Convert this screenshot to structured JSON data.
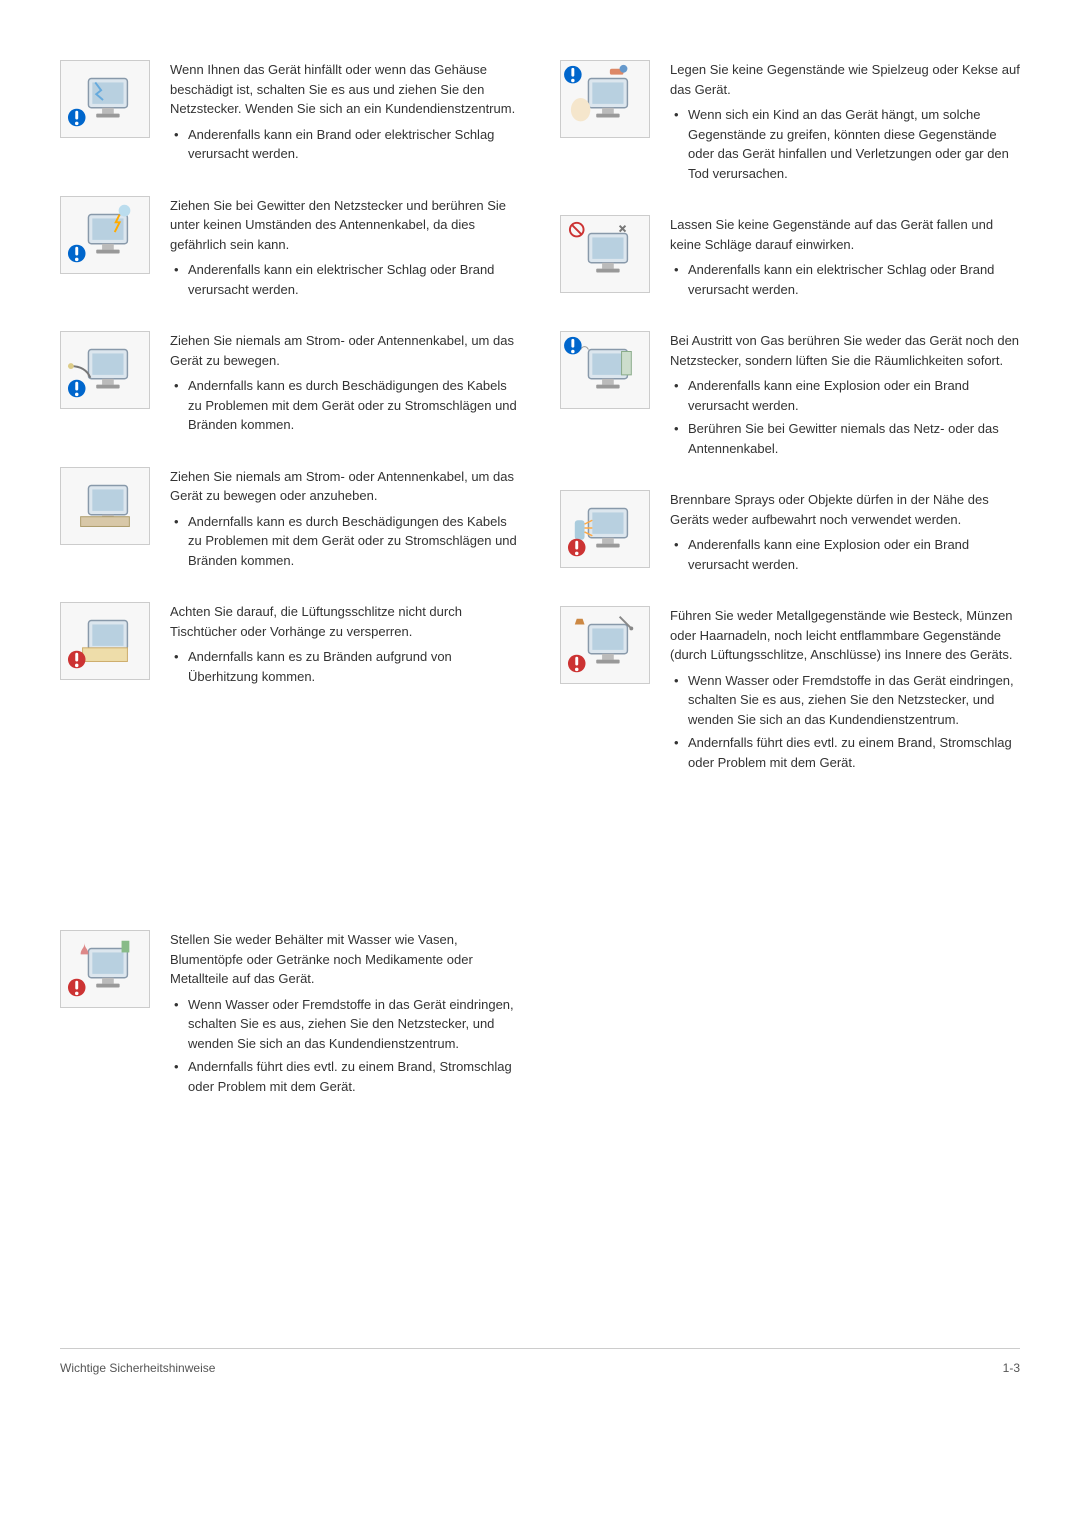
{
  "left": [
    {
      "main": "Wenn Ihnen das Gerät hinfällt oder wenn das Gehäuse beschädigt ist, schalten Sie es aus und ziehen Sie den Netzstecker. Wenden Sie sich an ein Kundendienstzentrum.",
      "bullets": [
        "Anderenfalls kann ein Brand oder elektrischer Schlag verursacht werden."
      ],
      "icon": "monitor-broken"
    },
    {
      "main": "Ziehen Sie bei Gewitter den Netzstecker und berühren Sie unter keinen Umständen des Antennenkabel, da dies gefährlich sein kann.",
      "bullets": [
        "Anderenfalls kann ein elektrischer Schlag oder Brand verursacht werden."
      ],
      "icon": "monitor-storm"
    },
    {
      "main": "Ziehen Sie niemals am Strom- oder Antennenkabel, um das Gerät zu bewegen.",
      "bullets": [
        "Andernfalls kann es durch Beschädigungen des Kabels zu Problemen mit dem Gerät oder zu Stromschlägen und Bränden kommen."
      ],
      "icon": "monitor-pull"
    },
    {
      "main": "Ziehen Sie niemals am Strom- oder Antennenkabel, um das Gerät zu bewegen oder anzuheben.",
      "bullets": [
        "Andernfalls kann es durch Beschädigungen des Kabels zu Problemen mit dem Gerät oder zu Stromschlägen und Bränden kommen."
      ],
      "icon": "monitor-lift"
    },
    {
      "main": "Achten Sie darauf, die Lüftungsschlitze nicht durch Tischtücher oder Vorhänge zu versperren.",
      "bullets": [
        "Andernfalls kann es zu Bränden aufgrund von Überhitzung kommen."
      ],
      "icon": "monitor-vent"
    },
    {
      "main": "Stellen Sie weder Behälter mit Wasser wie Vasen, Blumentöpfe oder Getränke noch Medikamente oder Metallteile auf das Gerät.",
      "bullets": [
        "Wenn Wasser oder Fremdstoffe in das Gerät eindringen, schalten Sie es aus, ziehen Sie den Netzstecker, und wenden Sie sich an das Kundendienstzentrum.",
        "Andernfalls führt dies evtl. zu einem Brand, Stromschlag oder Problem mit dem Gerät."
      ],
      "icon": "monitor-vase"
    }
  ],
  "right": [
    {
      "main": "Legen Sie keine Gegenstände wie Spielzeug oder Kekse auf das Gerät.",
      "bullets": [
        "Wenn sich ein Kind an das Gerät hängt, um solche Gegenstände zu greifen, könnten diese Gegenstände oder das Gerät hinfallen und Verletzungen oder gar den Tod verursachen."
      ],
      "icon": "monitor-toy"
    },
    {
      "main": "Lassen Sie keine Gegenstände auf das Gerät fallen und keine Schläge darauf einwirken.",
      "bullets": [
        "Anderenfalls kann ein elektrischer Schlag oder Brand verursacht werden."
      ],
      "icon": "monitor-drop"
    },
    {
      "main": "Bei Austritt von Gas berühren Sie weder das Gerät noch den Netzstecker, sondern lüften Sie die Räumlichkeiten sofort.",
      "bullets": [
        "Anderenfalls kann eine Explosion oder ein Brand verursacht werden.",
        "Berühren Sie bei Gewitter niemals das Netz- oder das Antennenkabel."
      ],
      "icon": "monitor-gas"
    },
    {
      "main": "Brennbare Sprays oder Objekte dürfen in der Nähe des Geräts weder aufbewahrt noch verwendet werden.",
      "bullets": [
        "Anderenfalls kann eine Explosion oder ein Brand verursacht werden."
      ],
      "icon": "monitor-spray"
    },
    {
      "main": "Führen Sie weder Metallgegenstände wie Besteck, Münzen oder Haarnadeln, noch leicht entflammbare Gegenstände (durch Lüftungsschlitze, Anschlüsse) ins Innere des Geräts.",
      "bullets": [
        "Wenn Wasser oder Fremdstoffe in das Gerät eindringen, schalten Sie es aus, ziehen Sie den Netzstecker, und wenden Sie sich an das Kundendienstzentrum.",
        "Andernfalls führt dies evtl. zu einem Brand, Stromschlag oder Problem mit dem Gerät."
      ],
      "icon": "monitor-metal"
    }
  ],
  "footer_left": "Wichtige Sicherheitshinweise",
  "footer_right": "1-3",
  "colors": {
    "text": "#333333",
    "border": "#cccccc",
    "warn_blue": "#0066cc",
    "warn_red": "#cc3333",
    "icon_bg": "#f7f7f7"
  }
}
